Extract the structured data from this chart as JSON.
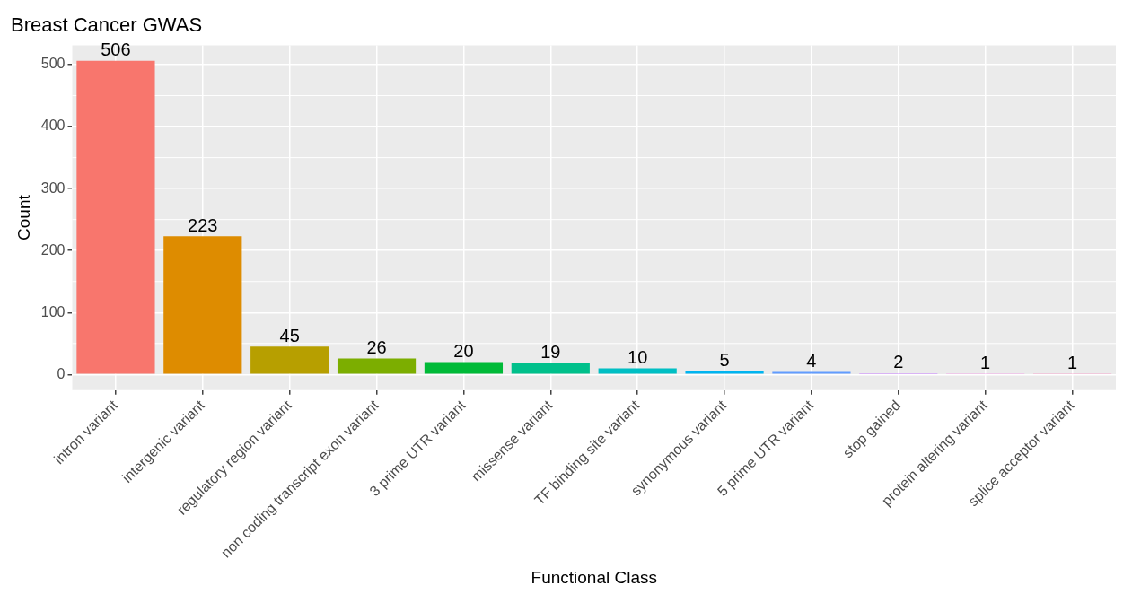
{
  "chart_data": {
    "type": "bar",
    "title": "Breast Cancer GWAS",
    "xlabel": "Functional Class",
    "ylabel": "Count",
    "categories": [
      "intron variant",
      "intergenic variant",
      "regulatory region variant",
      "non coding transcript exon variant",
      "3 prime UTR variant",
      "missense variant",
      "TF binding site variant",
      "synonymous variant",
      "5 prime UTR variant",
      "stop gained",
      "protein altering variant",
      "splice acceptor variant"
    ],
    "values": [
      506,
      223,
      45,
      26,
      20,
      19,
      10,
      5,
      4,
      2,
      1,
      1
    ],
    "colors": [
      "#f8766d",
      "#de8c00",
      "#b79f00",
      "#7cae00",
      "#00ba38",
      "#00c08b",
      "#00bfc4",
      "#00b4f0",
      "#619cff",
      "#c77cff",
      "#f564e3",
      "#ff64b0"
    ],
    "ylim": [
      -25.3,
      531.3
    ],
    "yticks": [
      0,
      100,
      200,
      300,
      400,
      500
    ],
    "grid": true,
    "data_labels": true,
    "legend": false
  }
}
